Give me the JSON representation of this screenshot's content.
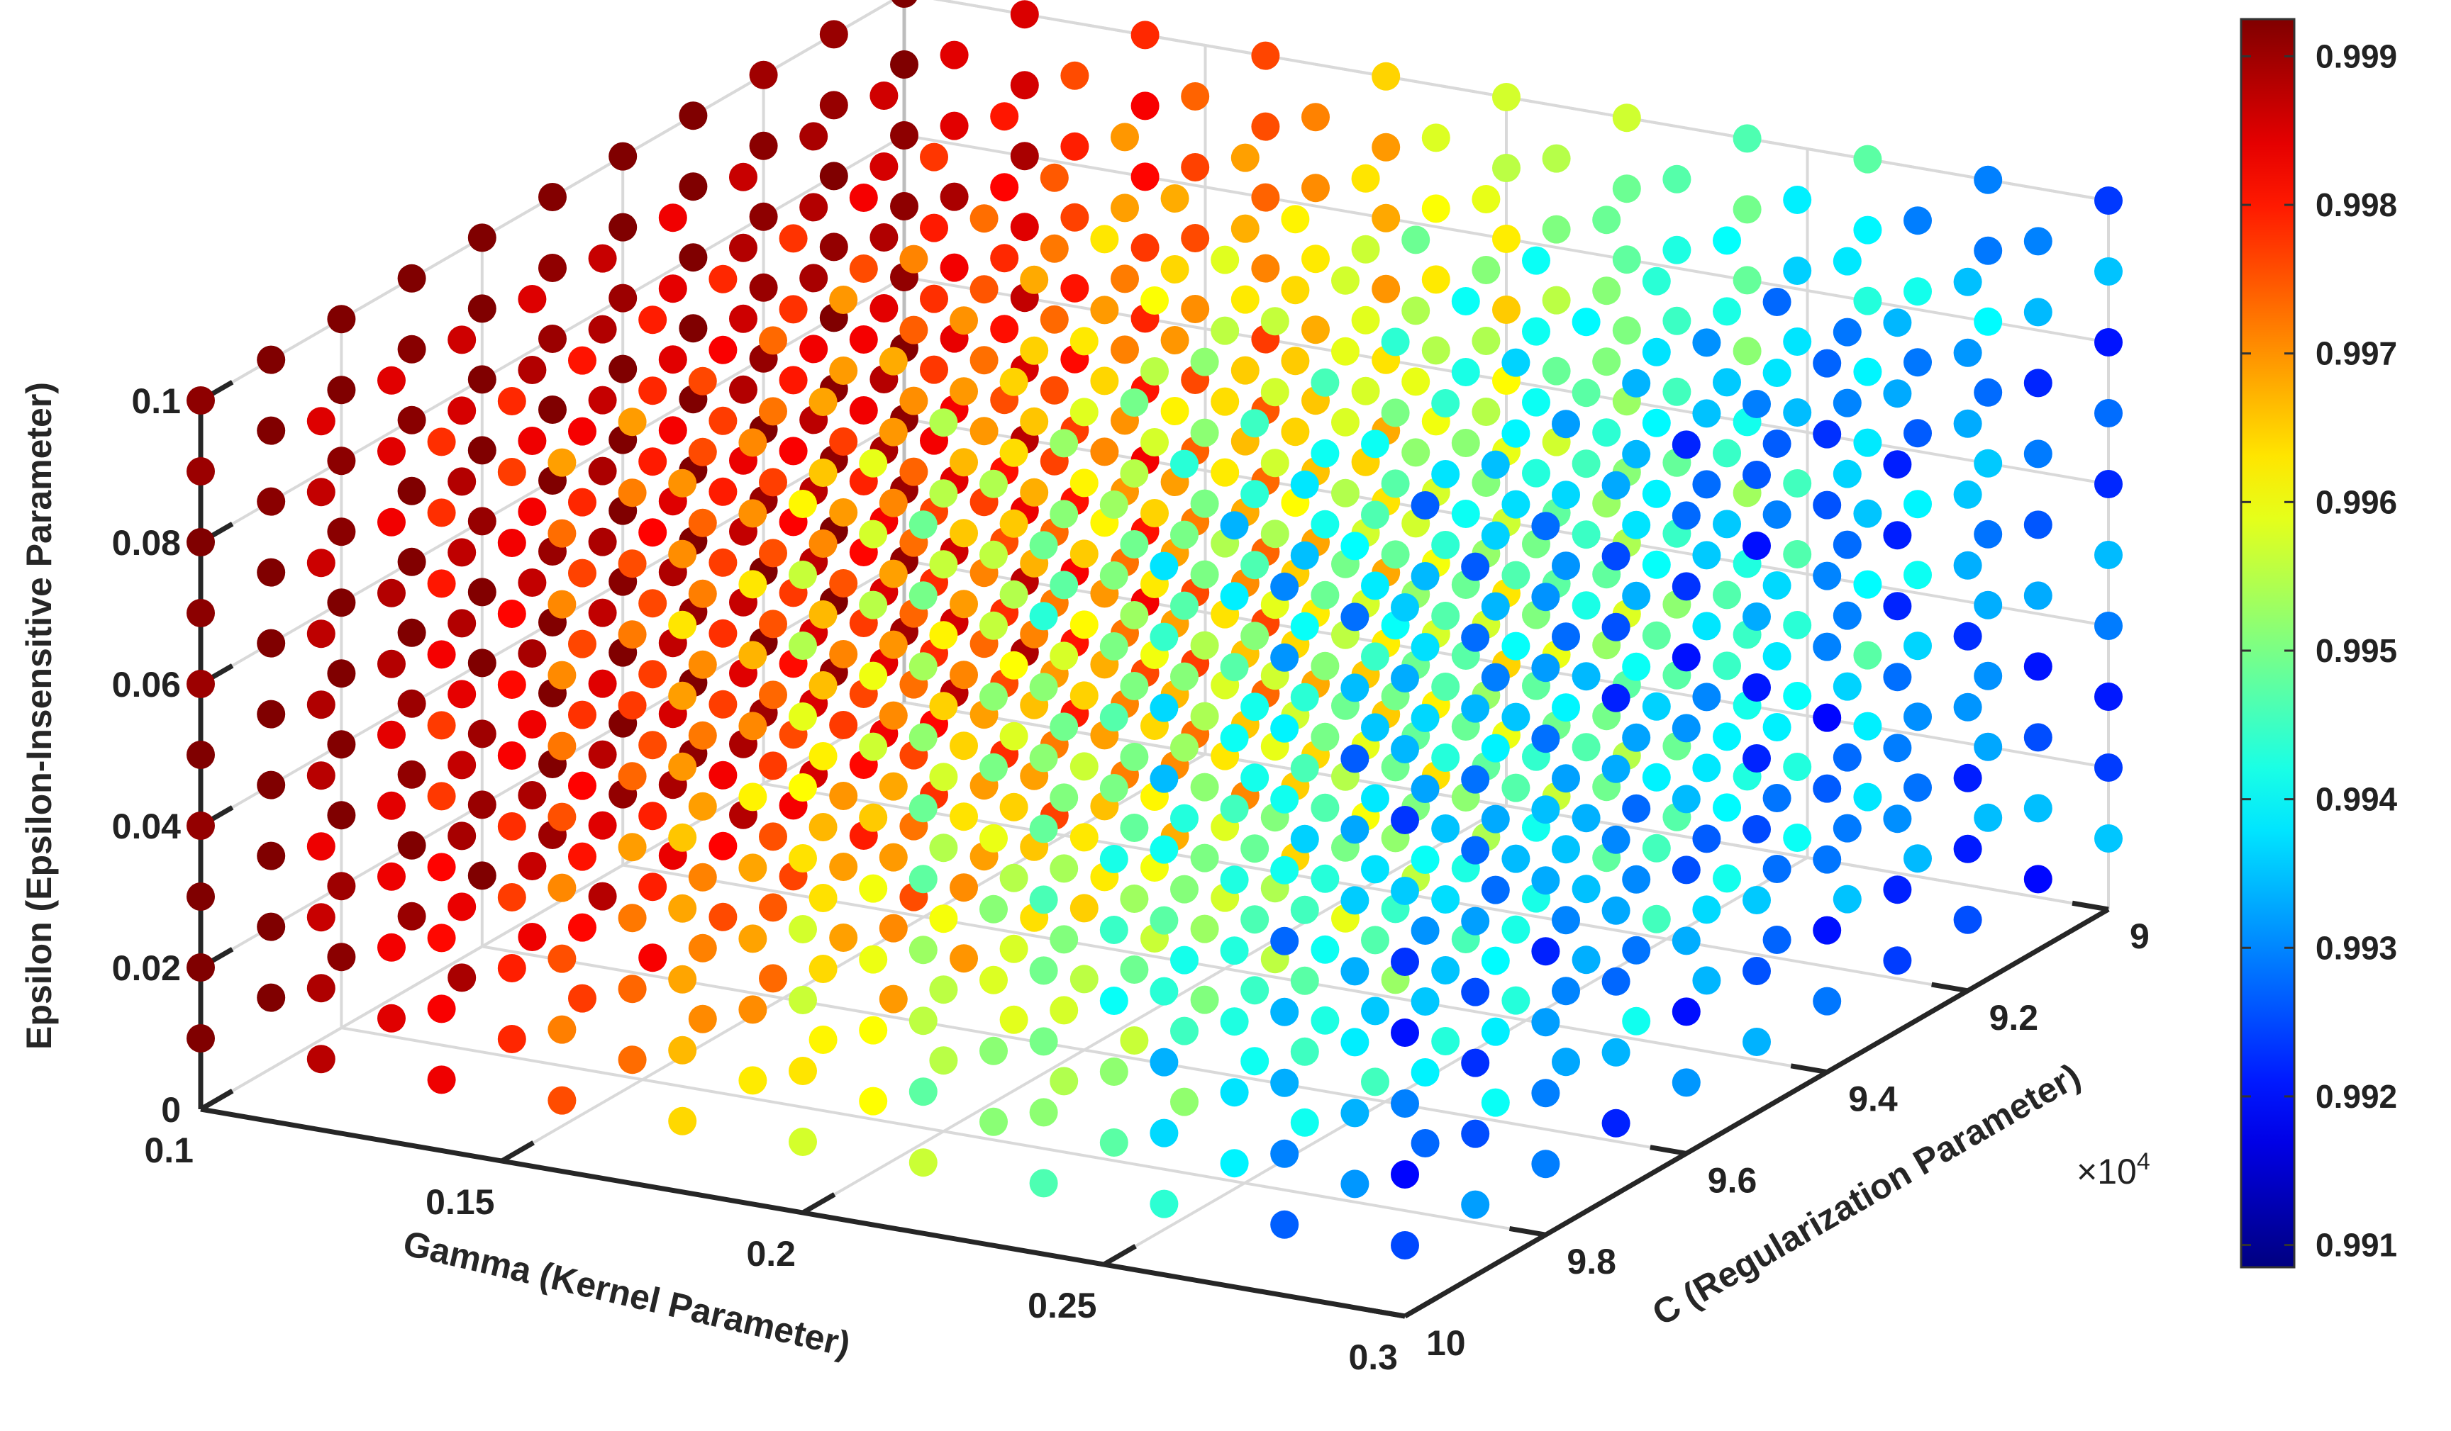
{
  "chart_data": {
    "type": "scatter3d",
    "title": "",
    "x_axis": {
      "label": "Gamma (Kernel Parameter)",
      "range": [
        0.1,
        0.3
      ],
      "ticks": [
        0.1,
        0.15,
        0.2,
        0.25,
        0.3
      ],
      "tick_labels": [
        "0.1",
        "0.15",
        "0.2",
        "0.25",
        "0.3"
      ]
    },
    "y_axis": {
      "label": "C (Regularization Parameter)",
      "range": [
        90000,
        100000
      ],
      "ticks": [
        90000,
        92000,
        94000,
        96000,
        98000,
        100000
      ],
      "tick_labels": [
        "9",
        "9.2",
        "9.4",
        "9.6",
        "9.8",
        "10"
      ],
      "exponent_label": "×10",
      "exponent_power": "4"
    },
    "z_axis": {
      "label": "Epsilon (Epsilon-Insensitive Parameter)",
      "range": [
        0,
        0.1
      ],
      "ticks": [
        0,
        0.02,
        0.04,
        0.06,
        0.08,
        0.1
      ],
      "tick_labels": [
        "0",
        "0.02",
        "0.04",
        "0.06",
        "0.08",
        "0.1"
      ]
    },
    "grid": {
      "gamma_values": [
        0.1,
        0.12,
        0.14,
        0.16,
        0.18,
        0.2,
        0.22,
        0.24,
        0.26,
        0.28,
        0.3
      ],
      "C_values": [
        90000,
        91000,
        92000,
        93000,
        94000,
        95000,
        96000,
        97000,
        98000,
        99000,
        100000
      ],
      "epsilon_values": [
        0.01,
        0.02,
        0.03,
        0.04,
        0.05,
        0.06,
        0.07,
        0.08,
        0.09,
        0.1
      ],
      "value_model": "R² decreases with gamma; approx 0.99925 - (gamma-0.1)/0.2*0.0065 with ±0.0006 variation"
    },
    "colorbar": {
      "colormap": "jet",
      "range": [
        0.99085,
        0.99925
      ],
      "ticks": [
        0.991,
        0.992,
        0.993,
        0.994,
        0.995,
        0.996,
        0.997,
        0.998,
        0.999
      ],
      "tick_labels": [
        "0.991",
        "0.992",
        "0.993",
        "0.994",
        "0.995",
        "0.996",
        "0.997",
        "0.998",
        "0.999"
      ]
    }
  }
}
